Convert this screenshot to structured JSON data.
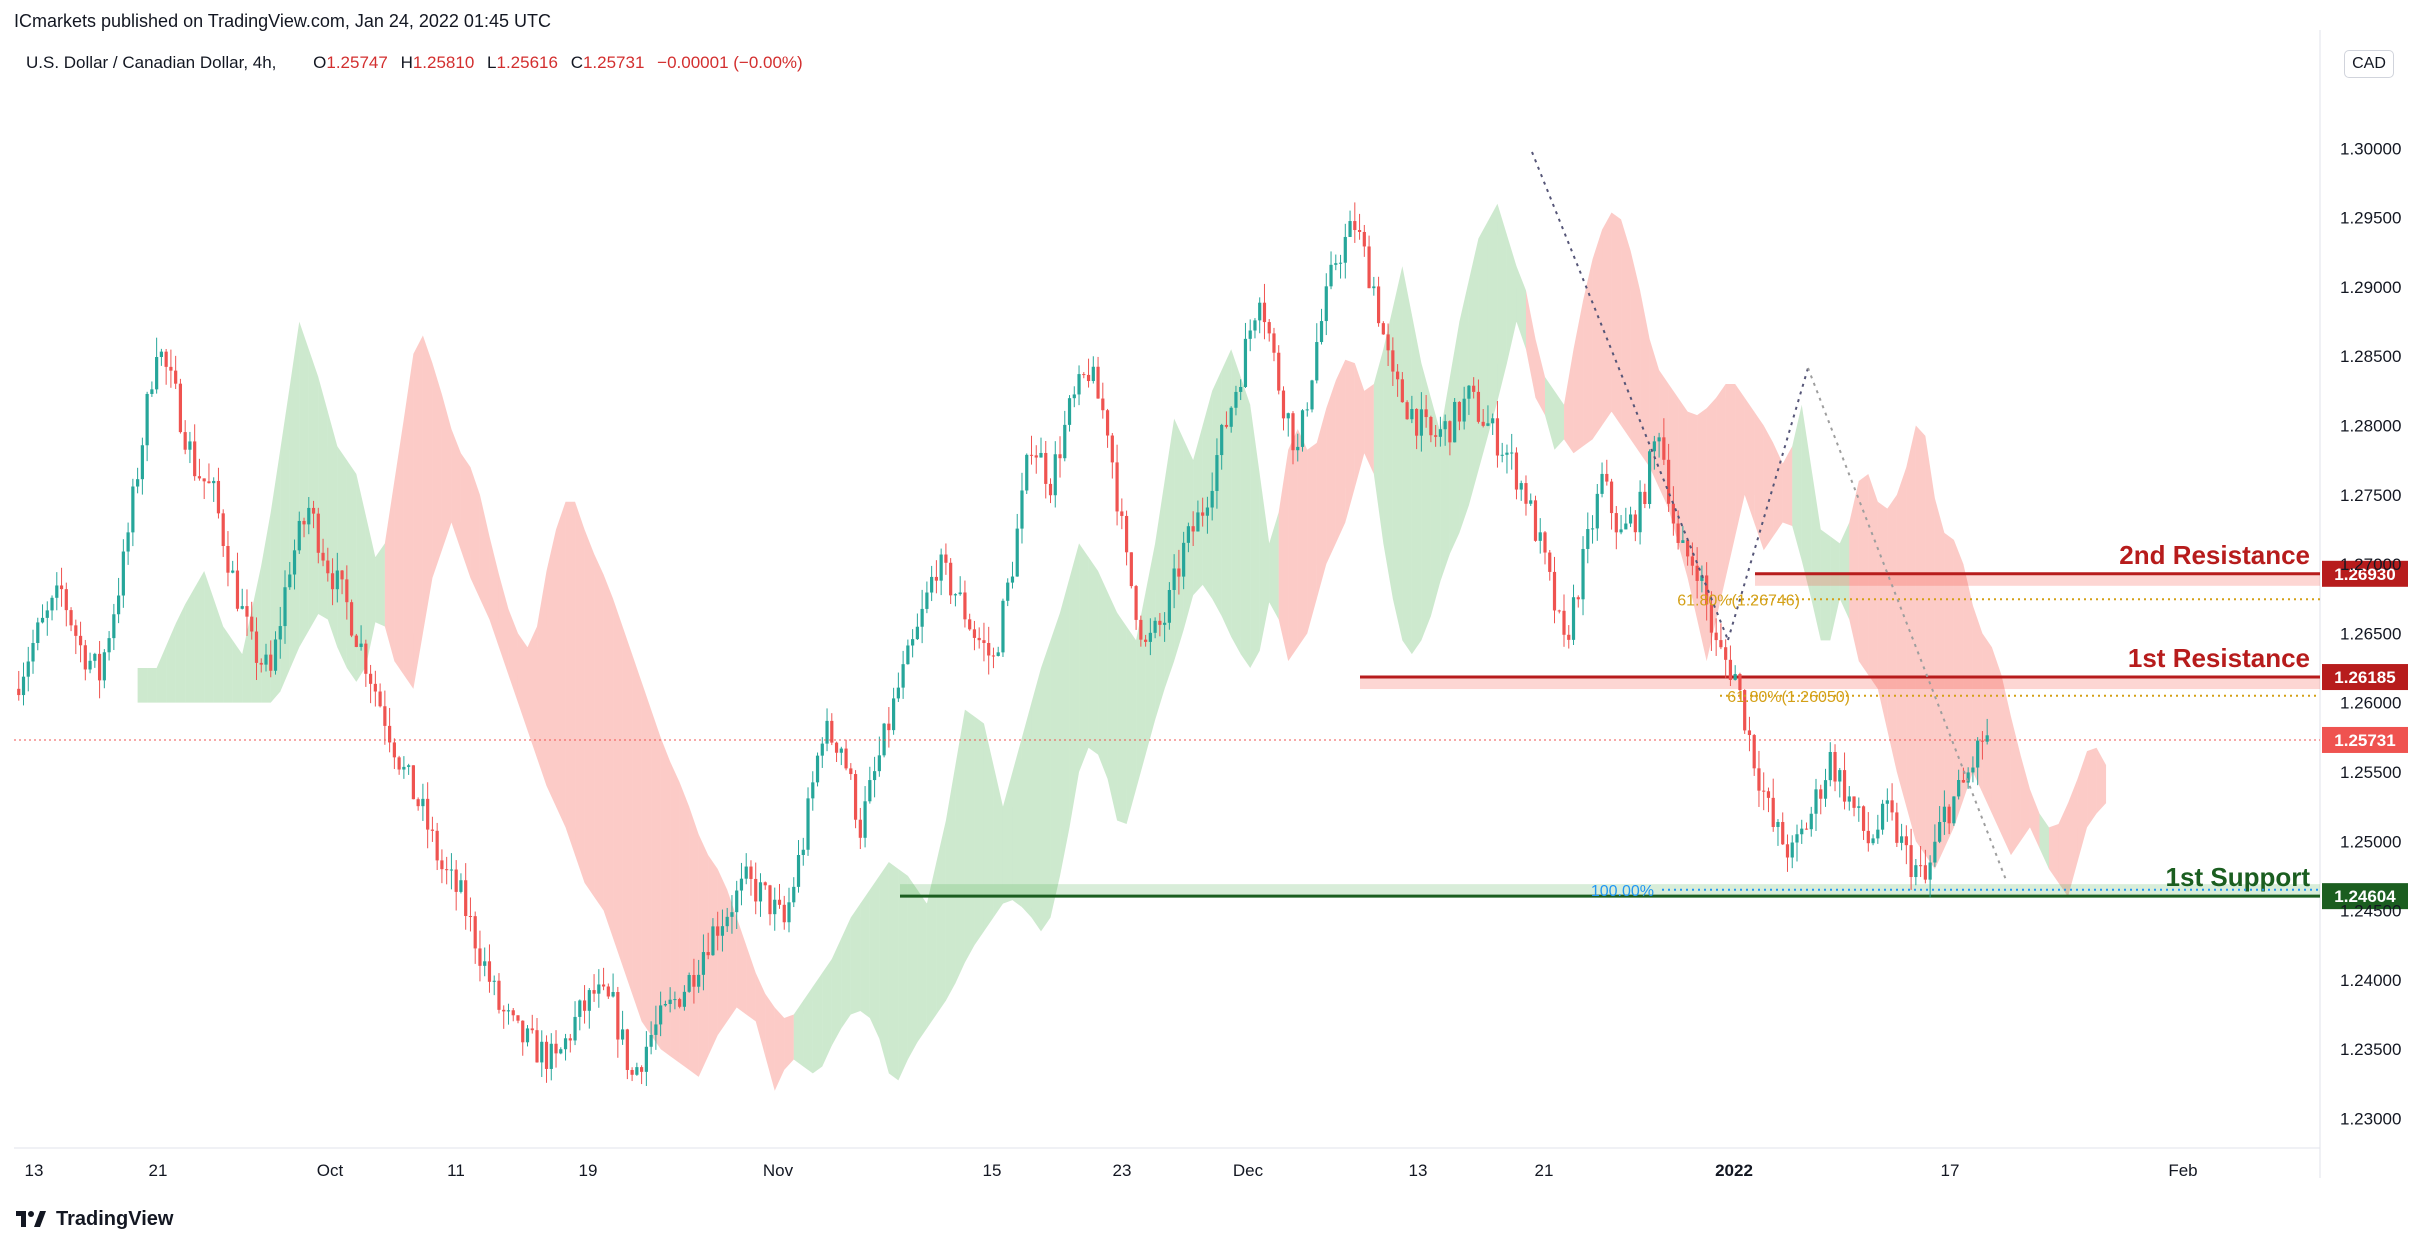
{
  "header": {
    "published": "ICmarkets published on TradingView.com, Jan 24, 2022 01:45 UTC"
  },
  "legend": {
    "symbol": "U.S. Dollar / Canadian Dollar, 4h,",
    "open_label": "O",
    "open": "1.25747",
    "high_label": "H",
    "high": "1.25810",
    "low_label": "L",
    "low": "1.25616",
    "close_label": "C",
    "close": "1.25731",
    "change": "−0.00001 (−0.00%)"
  },
  "currency": "CAD",
  "footer": {
    "brand": "TradingView"
  },
  "chart_data": {
    "type": "candlestick",
    "title": "U.S. Dollar / Canadian Dollar, 4h",
    "ylim": [
      1.227,
      1.3045
    ],
    "y_ticks": [
      "1.23000",
      "1.23500",
      "1.24000",
      "1.24500",
      "1.25000",
      "1.25500",
      "1.26000",
      "1.26500",
      "1.27000",
      "1.27500",
      "1.28000",
      "1.28500",
      "1.29000",
      "1.29500",
      "1.30000"
    ],
    "x_labels": [
      "13",
      "21",
      "Oct",
      "11",
      "19",
      "Nov",
      "15",
      "23",
      "Dec",
      "13",
      "21",
      "2022",
      "17",
      "Feb"
    ],
    "price_path": [
      [
        0,
        1.261
      ],
      [
        5,
        1.265
      ],
      [
        10,
        1.268
      ],
      [
        14,
        1.264
      ],
      [
        18,
        1.262
      ],
      [
        23,
        1.27
      ],
      [
        27,
        1.279
      ],
      [
        30,
        1.286
      ],
      [
        34,
        1.282
      ],
      [
        38,
        1.277
      ],
      [
        42,
        1.275
      ],
      [
        46,
        1.269
      ],
      [
        50,
        1.264
      ],
      [
        54,
        1.262
      ],
      [
        58,
        1.27
      ],
      [
        62,
        1.274
      ],
      [
        66,
        1.27
      ],
      [
        70,
        1.267
      ],
      [
        74,
        1.263
      ],
      [
        78,
        1.259
      ],
      [
        82,
        1.255
      ],
      [
        86,
        1.252
      ],
      [
        90,
        1.248
      ],
      [
        94,
        1.246
      ],
      [
        98,
        1.242
      ],
      [
        102,
        1.238
      ],
      [
        106,
        1.236
      ],
      [
        110,
        1.235
      ],
      [
        114,
        1.234
      ],
      [
        118,
        1.237
      ],
      [
        122,
        1.239
      ],
      [
        126,
        1.238
      ],
      [
        130,
        1.233
      ],
      [
        134,
        1.236
      ],
      [
        138,
        1.238
      ],
      [
        142,
        1.24
      ],
      [
        146,
        1.243
      ],
      [
        150,
        1.245
      ],
      [
        154,
        1.247
      ],
      [
        158,
        1.246
      ],
      [
        162,
        1.244
      ],
      [
        166,
        1.25
      ],
      [
        170,
        1.258
      ],
      [
        174,
        1.257
      ],
      [
        178,
        1.251
      ],
      [
        182,
        1.256
      ],
      [
        186,
        1.261
      ],
      [
        190,
        1.265
      ],
      [
        194,
        1.27
      ],
      [
        198,
        1.268
      ],
      [
        202,
        1.265
      ],
      [
        206,
        1.263
      ],
      [
        210,
        1.27
      ],
      [
        214,
        1.279
      ],
      [
        218,
        1.276
      ],
      [
        222,
        1.281
      ],
      [
        226,
        1.284
      ],
      [
        230,
        1.28
      ],
      [
        234,
        1.27
      ],
      [
        238,
        1.264
      ],
      [
        242,
        1.266
      ],
      [
        246,
        1.271
      ],
      [
        250,
        1.274
      ],
      [
        254,
        1.279
      ],
      [
        258,
        1.284
      ],
      [
        262,
        1.29
      ],
      [
        266,
        1.283
      ],
      [
        270,
        1.278
      ],
      [
        274,
        1.286
      ],
      [
        278,
        1.292
      ],
      [
        282,
        1.2945
      ],
      [
        286,
        1.29
      ],
      [
        290,
        1.283
      ],
      [
        294,
        1.281
      ],
      [
        298,
        1.279
      ],
      [
        302,
        1.28
      ],
      [
        306,
        1.282
      ],
      [
        310,
        1.28
      ],
      [
        314,
        1.278
      ],
      [
        318,
        1.275
      ],
      [
        322,
        1.27
      ],
      [
        326,
        1.264
      ],
      [
        330,
        1.27
      ],
      [
        334,
        1.276
      ],
      [
        338,
        1.272
      ],
      [
        342,
        1.274
      ],
      [
        346,
        1.28
      ],
      [
        350,
        1.271
      ],
      [
        354,
        1.27
      ],
      [
        358,
        1.264
      ],
      [
        362,
        1.262
      ],
      [
        366,
        1.256
      ],
      [
        370,
        1.251
      ],
      [
        374,
        1.249
      ],
      [
        378,
        1.252
      ],
      [
        382,
        1.256
      ],
      [
        386,
        1.253
      ],
      [
        390,
        1.25
      ],
      [
        394,
        1.252
      ],
      [
        398,
        1.249
      ],
      [
        402,
        1.247
      ],
      [
        406,
        1.252
      ],
      [
        410,
        1.254
      ],
      [
        414,
        1.2573
      ]
    ],
    "ichimoku_cloud": "shown (green bullish / red bearish)",
    "levels": [
      {
        "label": "2nd Resistance",
        "price": "1.26930",
        "color": "#b71c1c"
      },
      {
        "label": "1st Resistance",
        "price": "1.26185",
        "color": "#b71c1c"
      },
      {
        "label": "1st Support",
        "price": "1.24604",
        "color": "#1b5e20"
      }
    ],
    "current_price": "1.25731",
    "fibonacci": [
      {
        "label": "61.80%(1.26746)",
        "price": 1.26746
      },
      {
        "label": "61.80%(1.26050)",
        "price": 1.2605
      },
      {
        "label": "100.00%",
        "price": 1.2465
      }
    ],
    "colors": {
      "up": "#26a69a",
      "down": "#ef5350",
      "resistance": "#b71c1c",
      "support": "#1b5e20",
      "fib": "#d4a017"
    }
  }
}
